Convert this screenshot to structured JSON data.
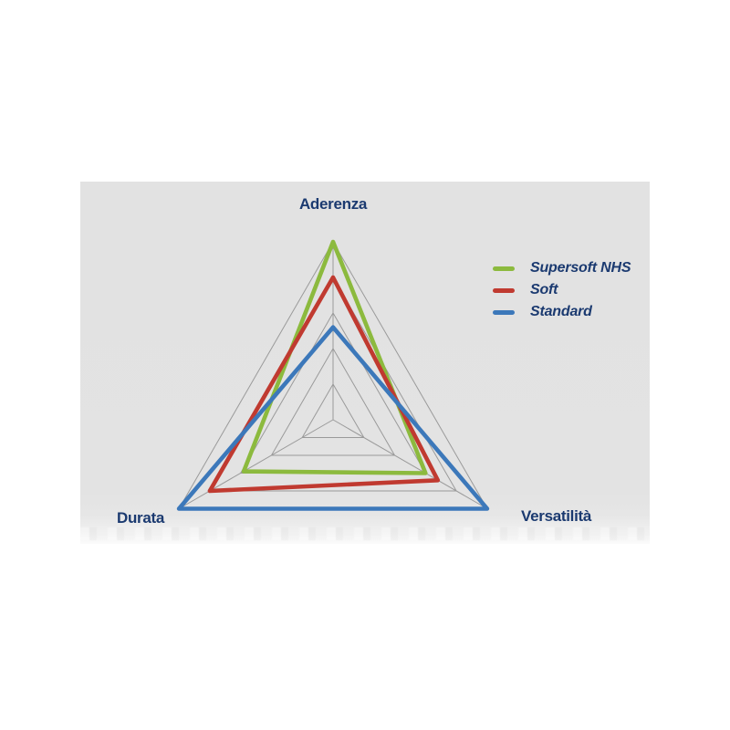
{
  "page": {
    "background_color": "#ffffff",
    "panel_background_color": "#e2e2e2"
  },
  "labels": {
    "top": "Aderenza",
    "bottom_left": "Durata",
    "bottom_right": "Versatilità"
  },
  "chart_data": {
    "type": "radar",
    "shape": "triangle",
    "axes": [
      "Aderenza",
      "Versatilità",
      "Durata"
    ],
    "levels": 5,
    "value_range": [
      0,
      5
    ],
    "grid_color": "#9a9a9a",
    "label_color": "#1b3a70",
    "legend_position": "right",
    "series": [
      {
        "name": "Supersoft NHS",
        "color": "#8cba3e",
        "values": [
          5.0,
          3.0,
          2.9
        ]
      },
      {
        "name": "Soft",
        "color": "#c03a30",
        "values": [
          4.0,
          3.4,
          4.0
        ]
      },
      {
        "name": "Standard",
        "color": "#3c78ba",
        "values": [
          2.6,
          5.0,
          5.0
        ]
      }
    ]
  }
}
